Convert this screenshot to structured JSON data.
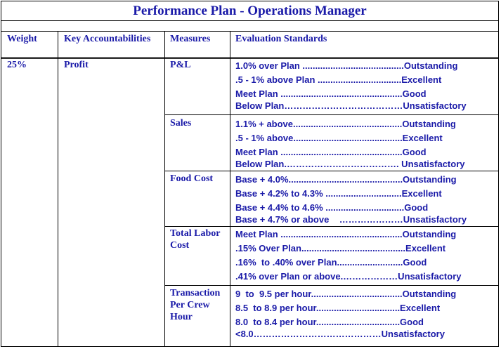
{
  "title": "Performance Plan - Operations Manager",
  "headers": {
    "weight": "Weight",
    "key": "Key Accountabilities",
    "measures": "Measures",
    "standards": "Evaluation Standards"
  },
  "row": {
    "weight": "25%",
    "key": "Profit"
  },
  "measures": [
    {
      "name": "P&L",
      "standards": [
        "1.0% over Plan ........................................Outstanding",
        ".5 - 1% above Plan .................................Excellent",
        "Meet Plan ................................................Good",
        "Below Plan…………………………………Unsatisfactory"
      ]
    },
    {
      "name": "Sales",
      "standards": [
        "1.1% + above...........................................Outstanding",
        ".5 - 1% above...........................................Excellent",
        "Meet Plan ................................................Good",
        "Below Plan.………………………………. Unsatisfactory"
      ]
    },
    {
      "name": "Food Cost",
      "standards": [
        "Base + 4.0%.............................................Outstanding",
        "Base + 4.2% to 4.3% ..............................Excellent",
        "Base + 4.4% to 4.6% ...............................Good",
        "Base + 4.7% or above    …………………Unsatisfactory"
      ]
    },
    {
      "name": "Total Labor Cost",
      "standards": [
        "Meet Plan ................................................Outstanding",
        ".15% Over Plan.........................................Excellent",
        ".16%  to .40% over Plan..........................Good",
        ".41% over Plan or above.………………Unsatisfactory"
      ]
    },
    {
      "name": "Transaction Per Crew Hour",
      "standards": [
        "9  to  9.5 per hour....................................Outstanding",
        "8.5  to 8.9 per hour.................................Excellent",
        "8.0  to 8.4 per hour.................................Good",
        "<8.0……………………………………Unsatisfactory"
      ]
    }
  ]
}
